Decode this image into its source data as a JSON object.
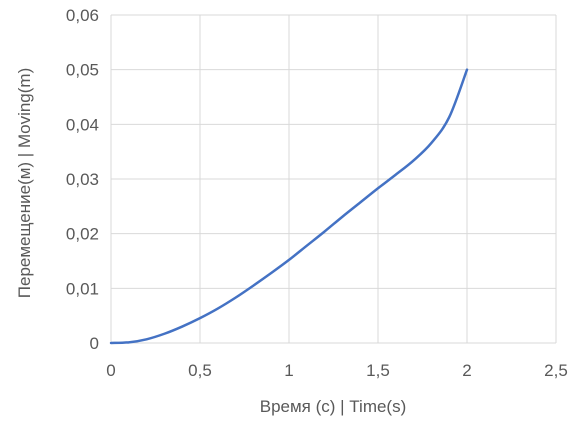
{
  "chart_data": {
    "type": "line",
    "xlabel": "Время (с) | Time(s)",
    "ylabel": "Перемещение(м) | Moving(m)",
    "xlim": [
      0,
      2.5
    ],
    "ylim": [
      0,
      0.06
    ],
    "x_ticks": [
      0,
      0.5,
      1,
      1.5,
      2,
      2.5
    ],
    "y_ticks": [
      0,
      0.01,
      0.02,
      0.03,
      0.04,
      0.05,
      0.06
    ],
    "x_tick_labels": [
      "0",
      "0,5",
      "1",
      "1,5",
      "2",
      "2,5"
    ],
    "y_tick_labels": [
      "0",
      "0,01",
      "0,02",
      "0,03",
      "0,04",
      "0,05",
      "0,06"
    ],
    "grid": true,
    "legend": "none",
    "series": [
      {
        "color": "#4472c4",
        "x": [
          0,
          0.1,
          0.2,
          0.3,
          0.4,
          0.5,
          0.6,
          0.7,
          0.8,
          0.9,
          1.0,
          1.1,
          1.2,
          1.3,
          1.4,
          1.5,
          1.6,
          1.7,
          1.8,
          1.9,
          2.0
        ],
        "y": [
          0,
          0.00012,
          0.00068,
          0.00169,
          0.00301,
          0.00455,
          0.0063,
          0.0083,
          0.0105,
          0.0128,
          0.0152,
          0.0178,
          0.0204,
          0.0231,
          0.0257,
          0.0283,
          0.0308,
          0.0334,
          0.0366,
          0.0413,
          0.05
        ]
      }
    ],
    "colors": {
      "grid": "#d9d9d9",
      "text": "#595959",
      "line": "#4472c4"
    }
  }
}
